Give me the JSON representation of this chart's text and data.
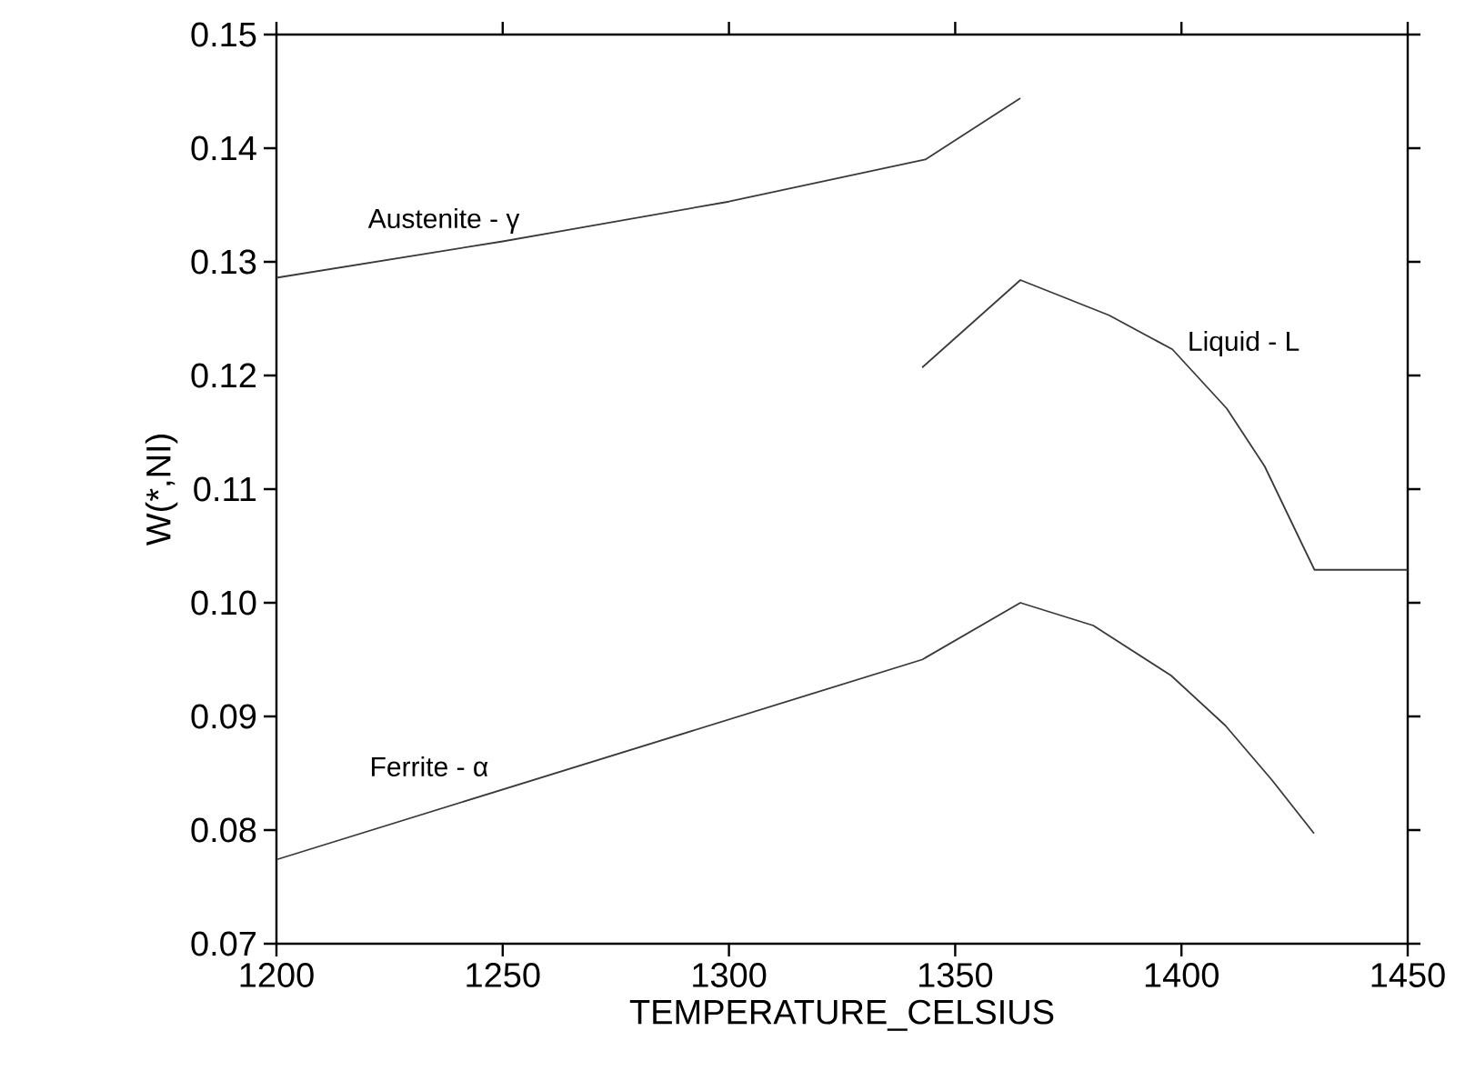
{
  "chart_data": {
    "type": "line",
    "xlabel": "TEMPERATURE_CELSIUS",
    "ylabel": "W(*,NI)",
    "xlim": [
      1200,
      1450
    ],
    "ylim": [
      0.07,
      0.15
    ],
    "xticks": [
      1200,
      1250,
      1300,
      1350,
      1400,
      1450
    ],
    "yticks": [
      0.07,
      0.08,
      0.09,
      {
        "value": 0.1,
        "label": "0.10"
      },
      0.11,
      0.12,
      0.13,
      0.14,
      0.15
    ],
    "grid": false,
    "marker": "none",
    "line_style": "solid",
    "series": [
      {
        "color": "#3a3a3a",
        "x": [
          1200,
          1250,
          1300,
          1343.4,
          1364.4
        ],
        "values": [
          0.1286,
          0.1318,
          0.1353,
          0.139,
          0.1444
        ]
      },
      {
        "color": "#3a3a3a",
        "x": [
          1342.7,
          1364.4,
          1384,
          1398,
          1410,
          1418.4,
          1426.6,
          1429.4,
          1450
        ],
        "values": [
          0.1207,
          0.1284,
          0.1253,
          0.1223,
          0.1171,
          0.112,
          0.1052,
          0.1029,
          0.1029
        ]
      },
      {
        "color": "#3a3a3a",
        "x": [
          1200,
          1342.7,
          1364.4,
          1380.5,
          1397.7,
          1409.7,
          1420,
          1429.3
        ],
        "values": [
          0.0774,
          0.095,
          0.1,
          0.098,
          0.0936,
          0.0892,
          0.0844,
          0.0797
        ]
      }
    ],
    "annotations": [
      "Austenite - γ",
      "Liquid - L",
      "Ferrite - α"
    ]
  }
}
